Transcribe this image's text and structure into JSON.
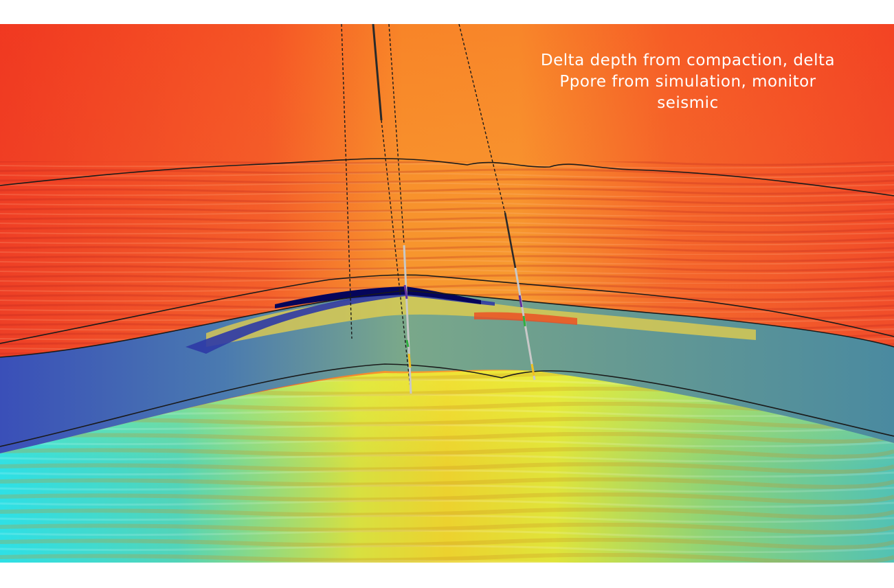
{
  "caption": {
    "lines": [
      "Delta depth from compaction, delta",
      "Ppore from simulation, monitor",
      "seismic"
    ]
  },
  "colors": {
    "overburden_red": "#f0452a",
    "overburden_orange": "#f59a30",
    "reservoir_blue": "#2a3ea8",
    "reservoir_dark": "#0a0a6e",
    "lower_teal": "#4aa6b8",
    "basement_yellow": "#e4e833",
    "basement_cyan": "#40e6e6",
    "horizon_line": "#1a1a1a",
    "caption_text": "#ffffff"
  },
  "horizons": [
    "top-horizon",
    "reservoir-top-horizon",
    "reservoir-base-horizon",
    "deep-horizon"
  ],
  "wells": [
    "well-1",
    "well-2",
    "well-3",
    "well-4"
  ]
}
